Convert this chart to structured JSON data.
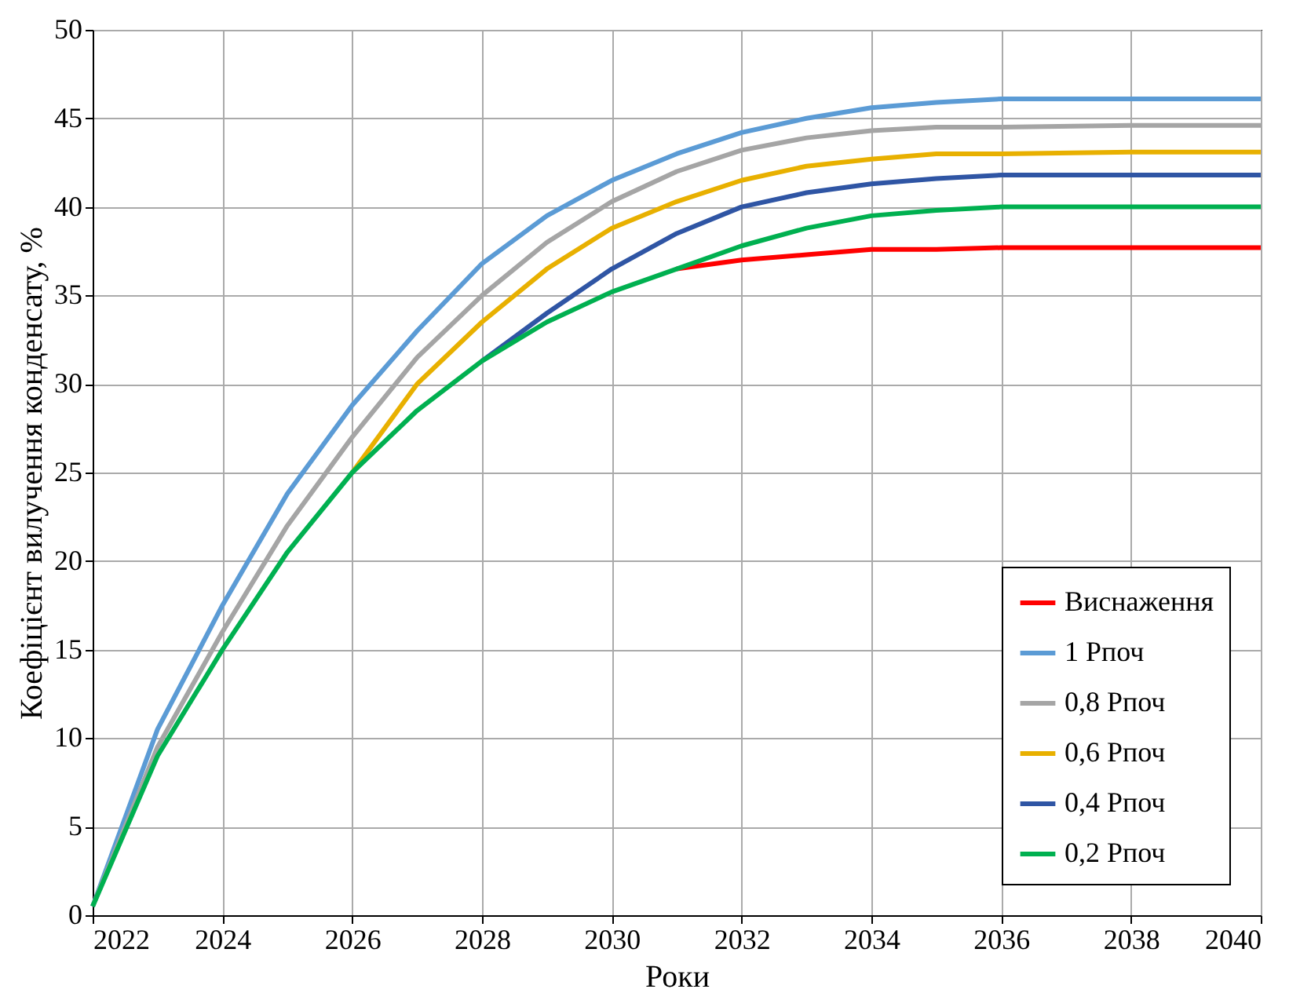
{
  "chart_data": {
    "type": "line",
    "xlabel": "Роки",
    "ylabel": "Коефіцієнт вилучення конденсату, %",
    "x": [
      2022,
      2023,
      2024,
      2025,
      2026,
      2027,
      2028,
      2029,
      2030,
      2031,
      2032,
      2033,
      2034,
      2035,
      2036,
      2038,
      2040
    ],
    "xlim": [
      2022,
      2040
    ],
    "xticks": [
      2022,
      2024,
      2026,
      2028,
      2030,
      2032,
      2034,
      2036,
      2038,
      2040
    ],
    "ylim": [
      0,
      50
    ],
    "yticks": [
      0,
      5,
      10,
      15,
      20,
      25,
      30,
      35,
      40,
      45,
      50
    ],
    "grid": true,
    "legend": "bottom right",
    "line_style": "solid",
    "marker": "none",
    "series": [
      {
        "name": "Виснаження",
        "color": "#ff0000",
        "values": [
          null,
          null,
          null,
          null,
          null,
          null,
          null,
          null,
          null,
          36.5,
          37,
          37.3,
          37.6,
          37.6,
          37.7,
          37.7,
          37.7
        ]
      },
      {
        "name": "1 Рпоч",
        "color": "#5b9bd5",
        "values": [
          0.5,
          10.5,
          17.5,
          23.8,
          28.8,
          33,
          36.8,
          39.5,
          41.5,
          43,
          44.2,
          45,
          45.6,
          45.9,
          46.1,
          46.1,
          46.1
        ]
      },
      {
        "name": "0,8 Рпоч",
        "color": "#a5a5a5",
        "values": [
          0.5,
          9.5,
          16,
          22,
          27,
          31.5,
          35,
          38,
          40.3,
          42,
          43.2,
          43.9,
          44.3,
          44.5,
          44.5,
          44.6,
          44.6
        ]
      },
      {
        "name": "0,6 Рпоч",
        "color": "#e8b000",
        "values": [
          null,
          null,
          null,
          null,
          25,
          30,
          33.5,
          36.5,
          38.8,
          40.3,
          41.5,
          42.3,
          42.7,
          43,
          43,
          43.1,
          43.1
        ]
      },
      {
        "name": "0,4 Рпоч",
        "color": "#2f55a4",
        "values": [
          null,
          null,
          null,
          null,
          null,
          null,
          31.3,
          34,
          36.5,
          38.5,
          40,
          40.8,
          41.3,
          41.6,
          41.8,
          41.8,
          41.8
        ]
      },
      {
        "name": "0,2 Рпоч",
        "color": "#00b050",
        "values": [
          0.5,
          9,
          15,
          20.5,
          25,
          28.5,
          31.3,
          33.5,
          35.2,
          36.5,
          37.8,
          38.8,
          39.5,
          39.8,
          40,
          40,
          40
        ]
      }
    ]
  }
}
